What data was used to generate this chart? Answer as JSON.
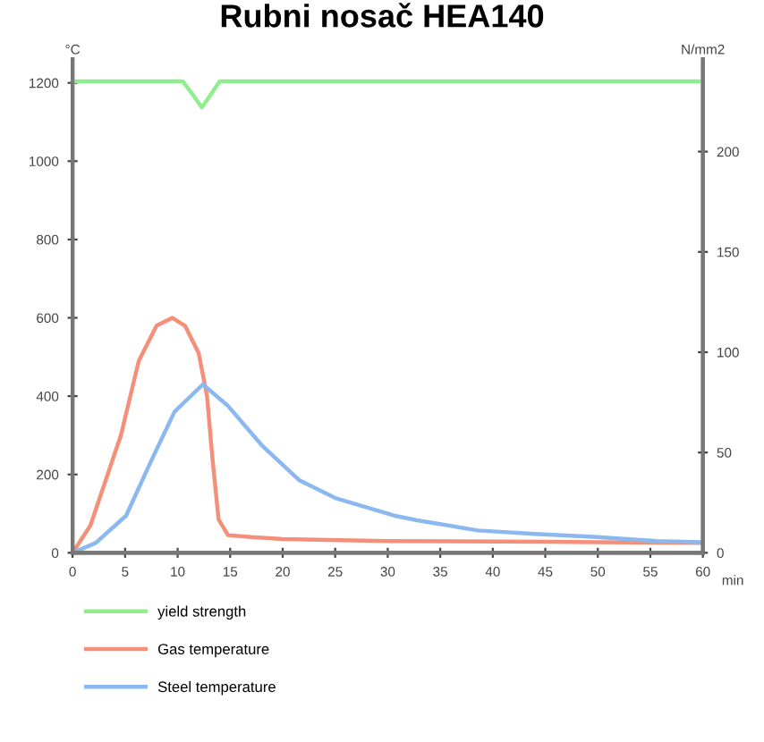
{
  "chart_data": {
    "type": "line",
    "title": "Rubni nosač HEA140",
    "ylabel": "°C",
    "y2label": "N/mm2",
    "xlabel": "min",
    "series": [
      {
        "name": "yield strength",
        "color": "#90ee90",
        "axis": "y2",
        "x": [
          0,
          10.5,
          11.5,
          12.3,
          13.1,
          14,
          60
        ],
        "values": [
          235,
          235,
          228,
          222,
          228,
          235,
          235
        ]
      },
      {
        "name": "Gas temperature",
        "color": "#f4907a",
        "x": [
          0,
          1.7,
          4.6,
          6.3,
          8,
          9.5,
          10.7,
          12,
          12.8,
          13.3,
          13.9,
          14.8,
          17,
          20,
          30,
          45,
          60
        ],
        "values": [
          0,
          70,
          300,
          490,
          580,
          600,
          580,
          510,
          400,
          245,
          85,
          45,
          40,
          35,
          30,
          28,
          25
        ]
      },
      {
        "name": "Steel temperature",
        "color": "#8cb8f0",
        "x": [
          0,
          2.2,
          5.1,
          7.4,
          9.7,
          12.4,
          14.8,
          18.1,
          21.6,
          25,
          30.6,
          32.8,
          38.6,
          44,
          50,
          55.6,
          60
        ],
        "values": [
          0,
          25,
          95,
          230,
          360,
          430,
          375,
          272,
          185,
          140,
          95,
          83,
          57,
          48,
          40,
          30,
          27
        ]
      }
    ],
    "xlim": [
      0,
      60
    ],
    "xticks": [
      0,
      5,
      10,
      15,
      20,
      25,
      30,
      35,
      40,
      45,
      50,
      55,
      60
    ],
    "ylim": [
      0,
      1260
    ],
    "yticks": [
      0,
      200,
      400,
      600,
      800,
      1000,
      1200
    ],
    "y2lim": [
      0,
      246
    ],
    "y2ticks": [
      0,
      50,
      100,
      150,
      200
    ],
    "grid": false,
    "legend": "bottom",
    "marker": "none",
    "line_style": "solid"
  }
}
